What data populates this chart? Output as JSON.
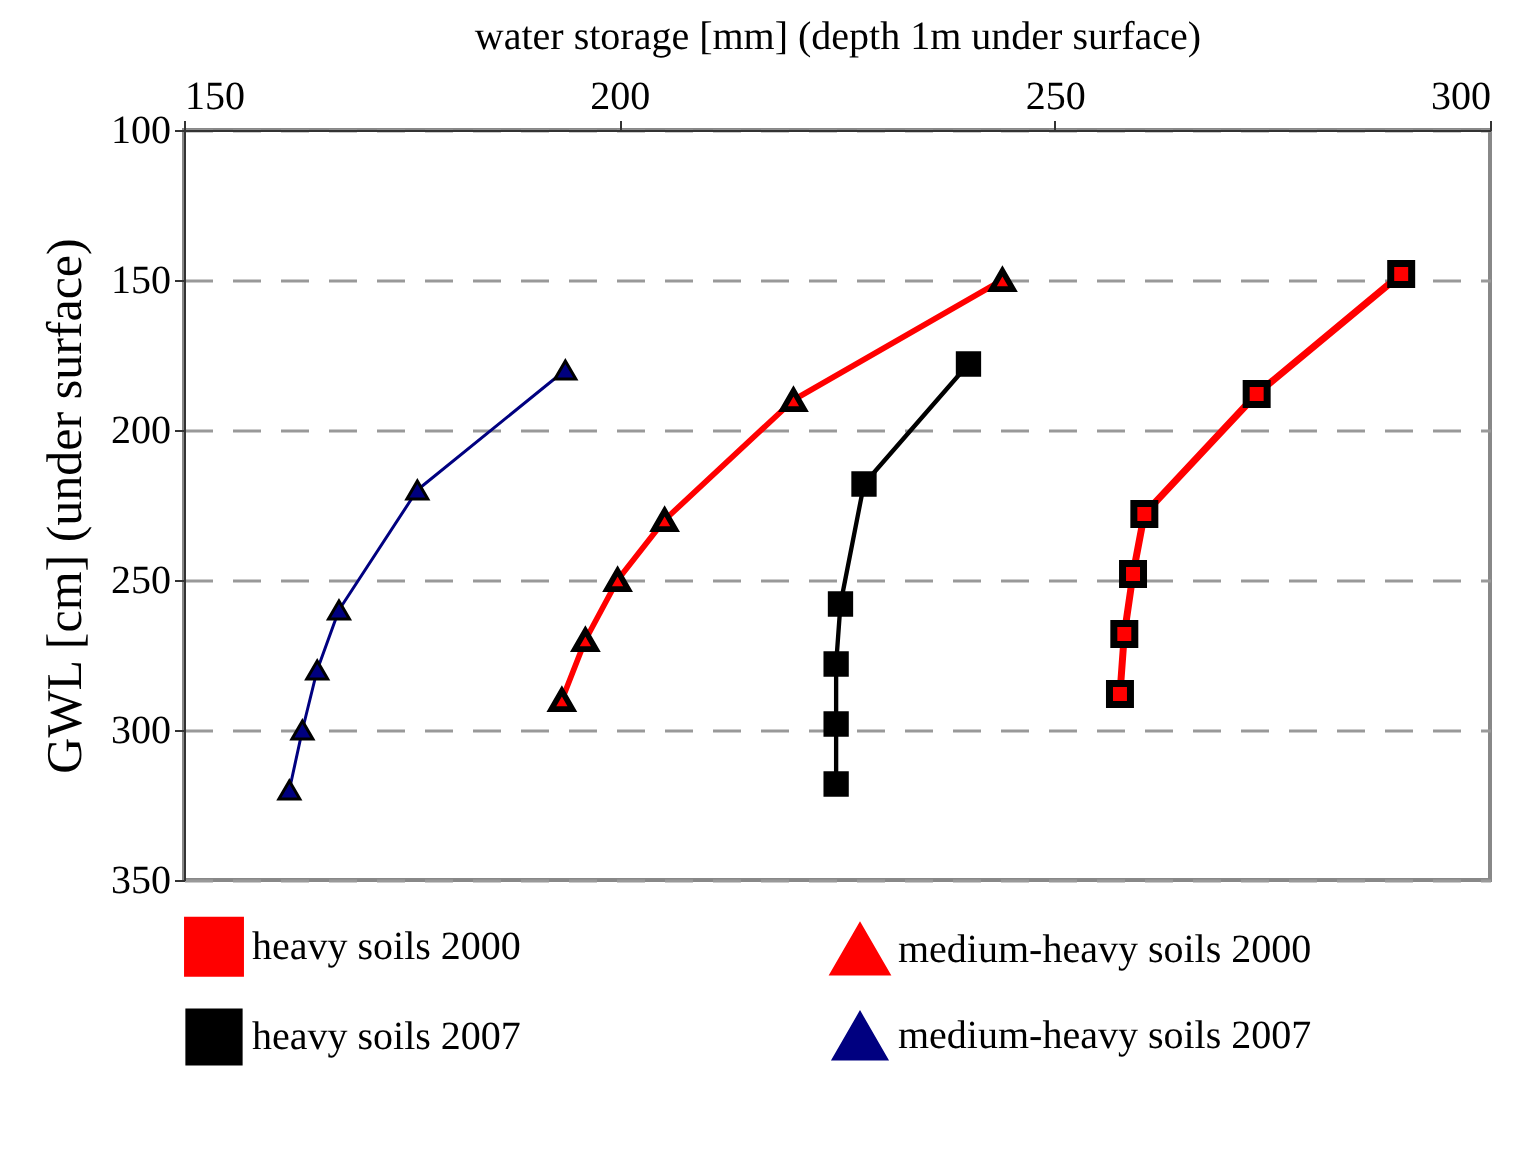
{
  "chart_data": {
    "type": "line",
    "xlabel": "water storage [mm] (depth 1m under surface)",
    "ylabel": "GWL [cm] (under surface)",
    "xlim": [
      150,
      300
    ],
    "xticks": [
      150,
      200,
      250,
      300
    ],
    "ylim": [
      350,
      100
    ],
    "yticks": [
      100,
      150,
      200,
      250,
      300,
      350
    ],
    "grid": "y",
    "legend": "bottom",
    "series": [
      {
        "name": "heavy soils 2000",
        "color": "#ff0000",
        "marker": "square",
        "x": [
          289.8,
          273.2,
          260.3,
          259.0,
          258.0,
          257.5
        ],
        "values": [
          148,
          188,
          228,
          248,
          268,
          288
        ]
      },
      {
        "name": "medium-heavy soils 2000",
        "color": "#ff0000",
        "marker": "triangle",
        "x": [
          244.0,
          220.0,
          205.2,
          199.8,
          196.1,
          193.4
        ],
        "values": [
          150,
          190,
          230,
          250,
          270,
          290
        ]
      },
      {
        "name": "heavy soils 2007",
        "color": "#000000",
        "marker": "square",
        "x": [
          240.1,
          228.1,
          225.4,
          224.9,
          224.9,
          224.9
        ],
        "values": [
          178,
          218,
          258,
          278,
          298,
          318
        ]
      },
      {
        "name": "medium-heavy soils 2007",
        "color": "#000080",
        "marker": "triangle",
        "x": [
          193.8,
          176.8,
          167.8,
          165.3,
          163.6,
          162.1
        ],
        "values": [
          180,
          220,
          260,
          280,
          300,
          320
        ]
      }
    ]
  }
}
